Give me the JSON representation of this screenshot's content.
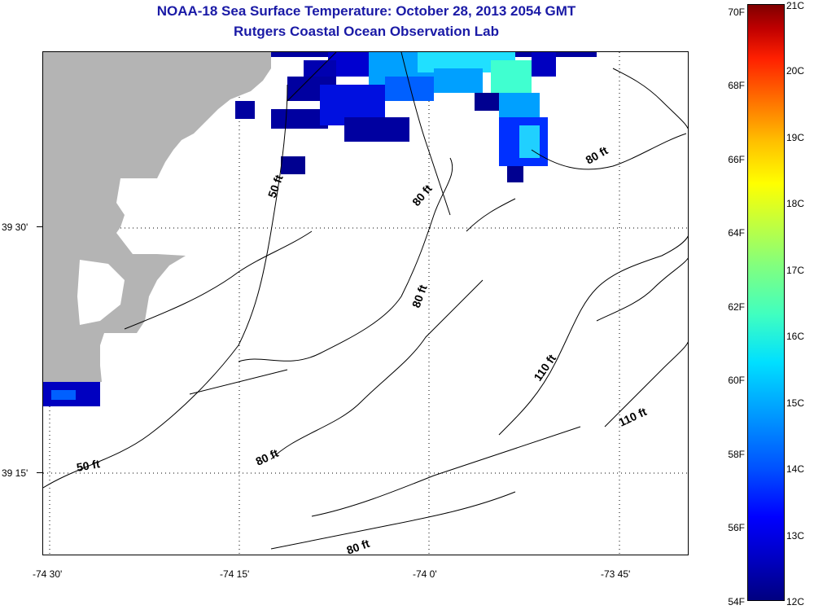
{
  "title": {
    "line1": "NOAA-18 Sea Surface Temperature:  October 28, 2013 2054 GMT",
    "line2": "Rutgers Coastal Ocean Observation Lab"
  },
  "axes": {
    "lat_labels": [
      "39 30'",
      "39 15'"
    ],
    "lon_labels": [
      "-74 30'",
      "-74 15'",
      "-74 0'",
      "-73 45'"
    ]
  },
  "contours": {
    "labels": [
      "50 ft",
      "80 ft",
      "80 ft",
      "80 ft",
      "110 ft",
      "110 ft",
      "80 ft",
      "50 ft",
      "80 ft"
    ]
  },
  "colorbar": {
    "fahrenheit": [
      "70F",
      "68F",
      "66F",
      "64F",
      "62F",
      "60F",
      "58F",
      "56F",
      "54F"
    ],
    "celsius": [
      "21C",
      "20C",
      "19C",
      "18C",
      "17C",
      "16C",
      "15C",
      "14C",
      "13C",
      "12C"
    ]
  },
  "colors": {
    "land": "#b4b4b4",
    "title": "#1a1aa6",
    "sst_deep": "#000080",
    "sst_mid": "#0040ff",
    "sst_warm": "#00e0ff"
  }
}
